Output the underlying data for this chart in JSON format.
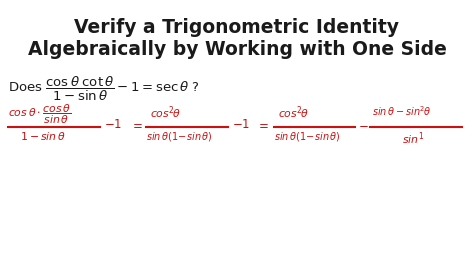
{
  "background_color": "#ffffff",
  "title_line1": "Verify a Trigonometric Identity",
  "title_line2": "Algebraically by Working with One Side",
  "title_color": "#1a1a1a",
  "title_fontsize": 13.5,
  "red_color": "#cc1111",
  "figsize": [
    4.74,
    2.66
  ],
  "dpi": 100
}
